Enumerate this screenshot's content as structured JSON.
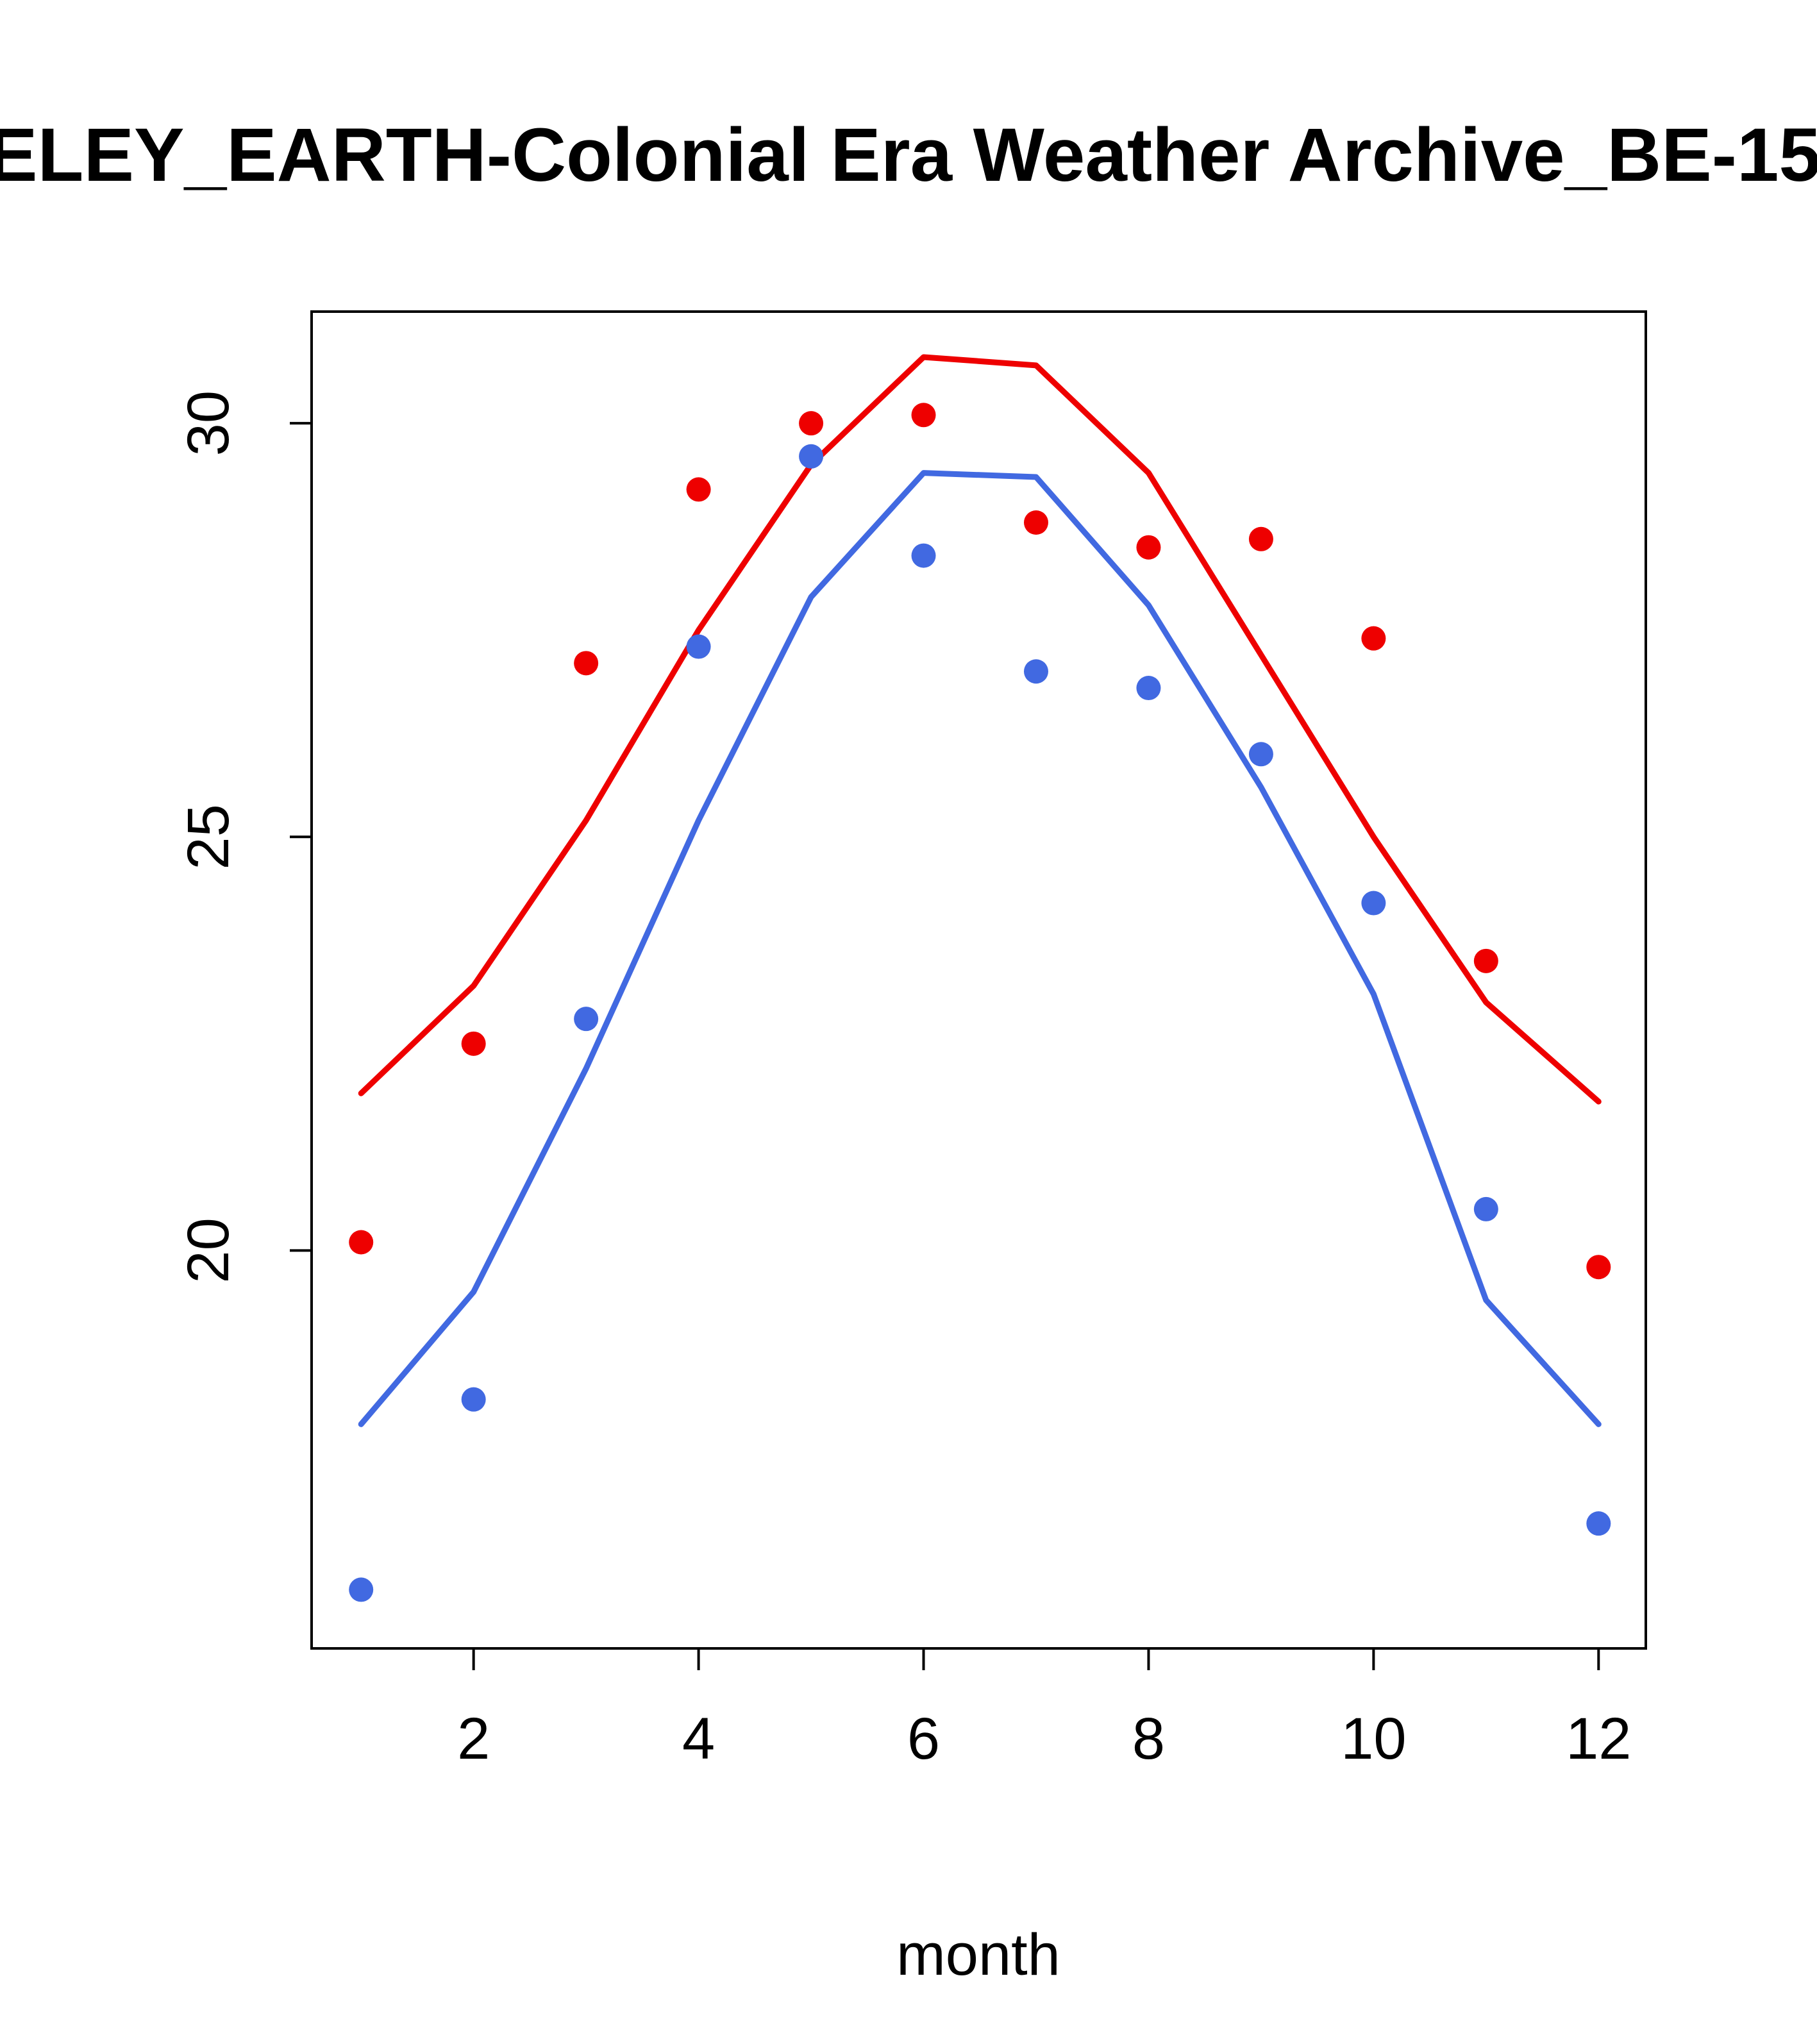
{
  "title": "ELEY_EARTH-Colonial Era Weather Archive_BE-15",
  "chart_data": {
    "type": "line",
    "x": [
      1,
      2,
      3,
      4,
      5,
      6,
      7,
      8,
      9,
      10,
      11,
      12
    ],
    "xlabel": "month",
    "ylabel": "",
    "xticks": [
      2,
      4,
      6,
      8,
      10,
      12
    ],
    "yticks": [
      20,
      25,
      30
    ],
    "xlim": [
      0.56,
      12.42
    ],
    "ylim": [
      15.19,
      31.35
    ],
    "grid": false,
    "legend": "none",
    "colors": {
      "hot": "#EE0000",
      "cold": "#4169E1"
    },
    "series": [
      {
        "name": "red-line",
        "type": "line",
        "color": "#EE0000",
        "values": [
          21.9,
          23.2,
          25.2,
          27.5,
          29.5,
          30.8,
          30.7,
          29.4,
          27.2,
          25.0,
          23.0,
          21.8
        ]
      },
      {
        "name": "red-points",
        "type": "scatter",
        "color": "#EE0000",
        "values": [
          20.1,
          22.5,
          27.1,
          29.2,
          30.0,
          30.1,
          28.8,
          28.5,
          28.6,
          27.4,
          23.5,
          19.8
        ]
      },
      {
        "name": "blue-line",
        "type": "line",
        "color": "#4169E1",
        "values": [
          17.9,
          19.5,
          22.2,
          25.2,
          27.9,
          29.4,
          29.35,
          27.8,
          25.6,
          23.1,
          19.4,
          17.9
        ]
      },
      {
        "name": "blue-points",
        "type": "scatter",
        "color": "#4169E1",
        "values": [
          15.9,
          18.2,
          22.8,
          27.3,
          29.6,
          28.4,
          27.0,
          26.8,
          26.0,
          24.2,
          20.5,
          16.7
        ]
      }
    ]
  }
}
